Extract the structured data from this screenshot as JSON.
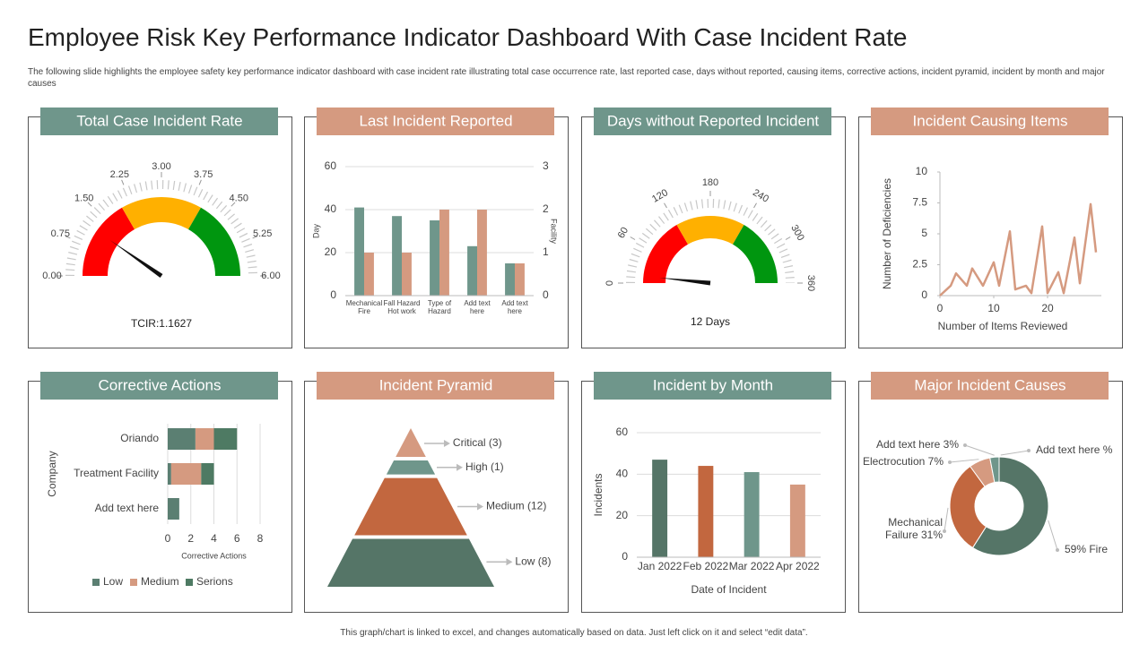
{
  "title": "Employee Risk Key Performance Indicator Dashboard With Case Incident Rate",
  "subtitle": "The following slide highlights the employee safety key performance indicator dashboard with case incident rate illustrating total case occurrence rate, last reported case, days without reported, causing items, corrective actions, incident pyramid, incident by month and major causes",
  "footer": "This graph/chart is linked to excel, and changes automatically based on data. Just left click on it and select “edit data”.",
  "chart_data": [
    {
      "type": "gauge",
      "title": "Total Case Incident Rate",
      "header_color": "#6f968b",
      "ylim": [
        0,
        6
      ],
      "yticks": [
        {
          "value": 0,
          "label": "0.00"
        },
        0.75,
        {
          "value": 1.5,
          "label": "1.50"
        },
        2.25,
        {
          "value": 3,
          "label": "3.00"
        },
        3.75,
        {
          "value": 4.5,
          "label": "4.50"
        },
        5.25,
        {
          "value": 6,
          "label": "6.00"
        }
      ],
      "bands": [
        {
          "from": 0,
          "to": 2,
          "color": "#ff0000"
        },
        {
          "from": 2,
          "to": 4,
          "color": "#ffb000"
        },
        {
          "from": 4,
          "to": 6,
          "color": "#00960f"
        }
      ],
      "value": 1.1627,
      "value_label": "TCIR:1.1627"
    },
    {
      "type": "bar",
      "title": "Last Incident Reported",
      "header_color": "#d59a80",
      "categories": [
        "Mechanical Fire",
        "Fall Hazard Hot work",
        "Type of Hazard",
        "Add text here",
        "Add text here"
      ],
      "series": [
        {
          "color": "#6f968b",
          "values": [
            41,
            37,
            35,
            23,
            15
          ]
        },
        {
          "color": "#d59a80",
          "axis": "y2",
          "values": [
            1,
            1,
            2,
            2,
            0.75
          ]
        }
      ],
      "ylim": [
        0,
        60
      ],
      "yticks": [
        0,
        20,
        40,
        60
      ],
      "y2lim": [
        0,
        3
      ],
      "y2ticks": [
        0,
        1,
        2,
        3
      ],
      "ylabel": "Day",
      "y2label": "Facility",
      "grid": true
    },
    {
      "type": "gauge",
      "title": "Days without Reported Incident",
      "header_color": "#6f968b",
      "ylim": [
        0,
        360
      ],
      "yticks": [
        0,
        60,
        120,
        180,
        240,
        300,
        360
      ],
      "bands": [
        {
          "from": 0,
          "to": 120,
          "color": "#ff0000"
        },
        {
          "from": 120,
          "to": 240,
          "color": "#ffb000"
        },
        {
          "from": 240,
          "to": 360,
          "color": "#00960f"
        }
      ],
      "value": 12,
      "value_label": "12 Days"
    },
    {
      "type": "line",
      "title": "Incident Causing Items",
      "header_color": "#d59a80",
      "color": "#d59a80",
      "x": [
        0,
        2,
        3,
        5,
        6,
        8,
        10,
        11,
        13,
        14,
        16,
        17,
        19,
        20,
        22,
        23,
        25,
        26,
        28,
        29
      ],
      "values": [
        0,
        0.8,
        1.8,
        0.8,
        2.2,
        0.8,
        2.7,
        0.8,
        5.2,
        0.5,
        0.8,
        0.2,
        5.6,
        0.2,
        1.9,
        0.2,
        4.7,
        1,
        7.4,
        3.5
      ],
      "xlim": [
        0,
        30
      ],
      "xticks": [
        0,
        10,
        20
      ],
      "ylim": [
        0,
        10
      ],
      "yticks": [
        0,
        2.5,
        5,
        7.5,
        10
      ],
      "xlabel": "Number of Items Reviewed",
      "ylabel": "Number of Deficiencies"
    },
    {
      "type": "hbar",
      "title": "Corrective  Actions",
      "header_color": "#6f968b",
      "stacked": true,
      "categories": [
        "Oriando",
        "Treatment Facility",
        "Add text here"
      ],
      "series": [
        {
          "name": "Low",
          "color": "#5b7f72",
          "values": [
            2.4,
            0.3,
            1
          ]
        },
        {
          "name": "Medium",
          "color": "#d59a80",
          "values": [
            1.6,
            2.6,
            0
          ]
        },
        {
          "name": "Serions",
          "color": "#4e7a63",
          "values": [
            2,
            1.1,
            0
          ]
        }
      ],
      "xlim": [
        0,
        8
      ],
      "xticks": [
        0,
        2,
        4,
        6,
        8
      ],
      "xlabel": "Corrective Actions",
      "ylabel": "Company",
      "grid": true
    },
    {
      "type": "pyramid",
      "title": "Incident Pyramid",
      "header_color": "#d59a80",
      "values": [
        3,
        1,
        12,
        8
      ],
      "value_labels": [
        "Critical (3)",
        "High (1)",
        "Medium (12)",
        "Low (8)"
      ],
      "colors": [
        "#d59a80",
        "#6f968b",
        "#c2673f",
        "#557567"
      ]
    },
    {
      "type": "bar",
      "title": "Incident by Month",
      "header_color": "#6f968b",
      "categories": [
        "Jan 2022",
        "Feb 2022",
        "Mar 2022",
        "Apr 2022"
      ],
      "values": [
        47,
        44,
        41,
        35
      ],
      "colors": [
        "#557567",
        "#c2673f",
        "#6f968b",
        "#d59a80"
      ],
      "ylim": [
        0,
        60
      ],
      "yticks": [
        0,
        20,
        40,
        60
      ],
      "xlabel": "Date of Incident",
      "ylabel": "Incidents",
      "grid": true
    },
    {
      "type": "donut",
      "title": "Major Incident Causes",
      "header_color": "#d59a80",
      "values": [
        59,
        31,
        7,
        3,
        null
      ],
      "value_labels": [
        "59% Fire",
        "Mechanical Failure 31%",
        "Electrocution 7%",
        "Add text here 3%",
        "Add text here %"
      ],
      "colors": [
        "#557567",
        "#c2673f",
        "#d59a80",
        "#6f968b",
        "#3e5a50"
      ]
    }
  ]
}
